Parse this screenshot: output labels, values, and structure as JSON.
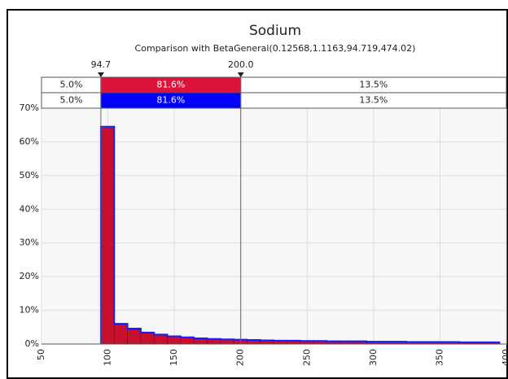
{
  "chart_data": {
    "type": "histogram",
    "title": "Sodium",
    "subtitle": "Comparison with BetaGeneral(0.12568,1.1163,94.719,474.02)",
    "bins": [
      94.7,
      104.7,
      114.7,
      124.7,
      134.7,
      144.7,
      154.7,
      164.7,
      174.7,
      184.7,
      194.7,
      204.7,
      214.7,
      224.7,
      234.7,
      244.7,
      254.7,
      264.7,
      274.7,
      284.7,
      294.7,
      304.7,
      314.7,
      324.7,
      334.7,
      344.7,
      354.7,
      364.7,
      374.7,
      384.7,
      394.7
    ],
    "series": [
      {
        "name": "Sodium",
        "color": "#c8102e",
        "values": [
          64.2,
          5.8,
          4.3,
          3.2,
          2.6,
          2.2,
          1.9,
          1.6,
          1.4,
          1.3,
          1.2,
          1.1,
          1.0,
          1.0,
          0.9,
          0.9,
          0.8,
          0.8,
          0.8,
          0.7,
          0.7,
          0.7,
          0.6,
          0.6,
          0.6,
          0.6,
          0.5,
          0.5,
          0.5,
          0.5
        ]
      },
      {
        "name": "BetaGeneral",
        "color": "#1a1aff",
        "values": [
          64.5,
          6.0,
          4.6,
          3.4,
          2.8,
          2.3,
          2.0,
          1.7,
          1.5,
          1.4,
          1.3,
          1.2,
          1.1,
          1.0,
          1.0,
          0.9,
          0.9,
          0.8,
          0.8,
          0.8,
          0.7,
          0.7,
          0.7,
          0.6,
          0.6,
          0.6,
          0.6,
          0.5,
          0.5,
          0.5
        ]
      }
    ],
    "xlim": [
      50,
      400
    ],
    "xticks": [
      50,
      100,
      150,
      200,
      250,
      300,
      350,
      400
    ],
    "ylim": [
      0,
      70
    ],
    "yticks": [
      {
        "value": 0,
        "label": "0%"
      },
      {
        "value": 10,
        "label": "10%"
      },
      {
        "value": 20,
        "label": "20%"
      },
      {
        "value": 30,
        "label": "30%"
      },
      {
        "value": 40,
        "label": "40%"
      },
      {
        "value": 50,
        "label": "50%"
      },
      {
        "value": 60,
        "label": "60%"
      },
      {
        "value": 70,
        "label": "70%"
      }
    ],
    "grid": true,
    "delimiters": [
      {
        "value": 94.7,
        "label": "94.7"
      },
      {
        "value": 200,
        "label": "200.0"
      }
    ],
    "bands": [
      {
        "color": "#dc143c",
        "cells": [
          "5.0%",
          "81.6%",
          "13.5%"
        ]
      },
      {
        "color": "#0000ff",
        "cells": [
          "5.0%",
          "81.6%",
          "13.5%"
        ]
      }
    ]
  }
}
